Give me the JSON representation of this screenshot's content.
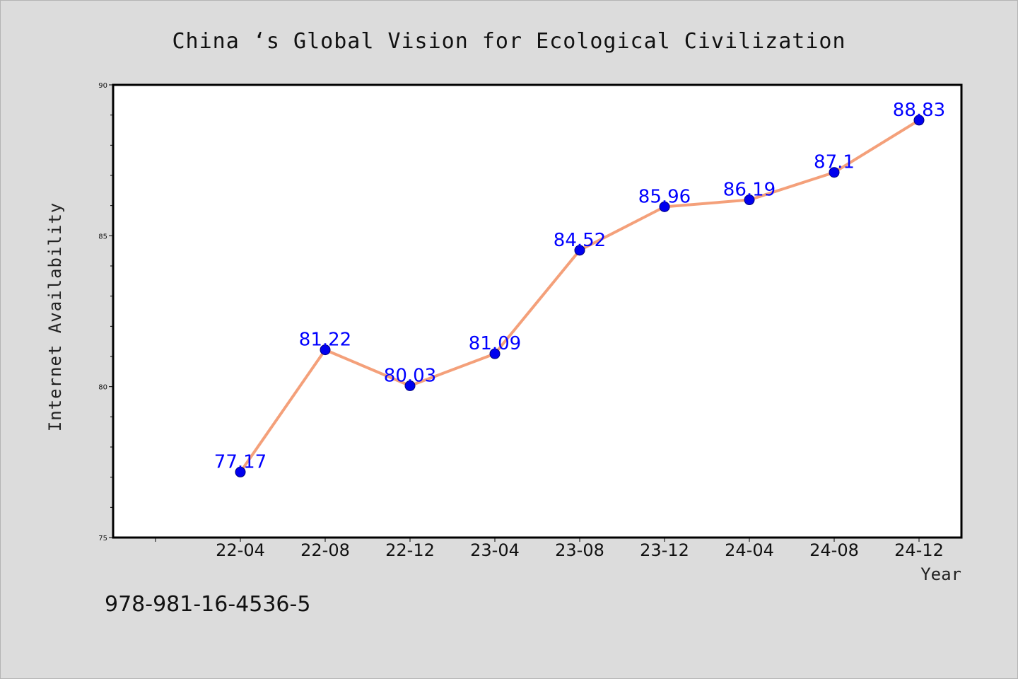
{
  "chart_data": {
    "type": "line",
    "title": "China ‘s Global Vision for Ecological Civilization",
    "xlabel": "Year",
    "ylabel": "Internet Availability",
    "categories": [
      "22-04",
      "22-08",
      "22-12",
      "23-04",
      "23-08",
      "23-12",
      "24-04",
      "24-08",
      "24-12"
    ],
    "values": [
      77.17,
      81.22,
      80.03,
      81.09,
      84.52,
      85.96,
      86.19,
      87.1,
      88.83
    ],
    "data_labels": [
      "77.17",
      "81.22",
      "80.03",
      "81.09",
      "84.52",
      "85.96",
      "86.19",
      "87.1",
      "88.83"
    ],
    "ylim": [
      75,
      90
    ],
    "yticks": [
      "75",
      "80",
      "85",
      "90"
    ],
    "grid": false,
    "line_color": "#f4a07a",
    "marker_color": "#0000ee",
    "label_color": "#0000ff"
  },
  "footer_text": "978-981-16-4536-5"
}
